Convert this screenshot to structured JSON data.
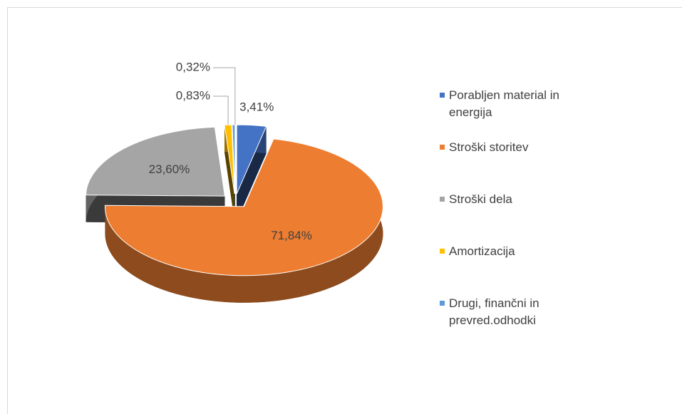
{
  "chart_data": {
    "type": "pie",
    "categories": [
      "Porabljen material in energija",
      "Stroški storitev",
      "Stroški dela",
      "Amortizacija",
      "Drugi, finančni in prevred.odhodki"
    ],
    "values": [
      3.41,
      71.84,
      23.6,
      0.83,
      0.32
    ],
    "value_labels": [
      "3,41%",
      "71,84%",
      "23,60%",
      "0,83%",
      "0,32%"
    ],
    "colors": [
      "#4472c4",
      "#ed7d31",
      "#a5a5a5",
      "#ffc000",
      "#5b9bd5"
    ],
    "legend": "right"
  }
}
